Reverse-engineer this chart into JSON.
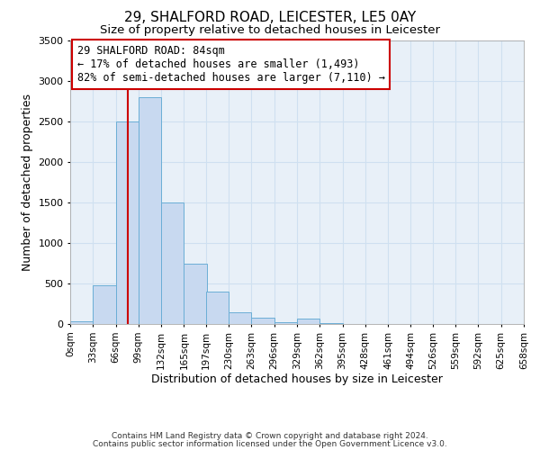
{
  "title": "29, SHALFORD ROAD, LEICESTER, LE5 0AY",
  "subtitle": "Size of property relative to detached houses in Leicester",
  "xlabel": "Distribution of detached houses by size in Leicester",
  "ylabel": "Number of detached properties",
  "bar_left_edges": [
    0,
    33,
    66,
    99,
    132,
    165,
    197,
    230,
    263,
    296,
    329,
    362,
    395,
    428,
    461,
    494,
    526,
    559,
    592,
    625
  ],
  "bar_heights": [
    30,
    480,
    2500,
    2800,
    1500,
    750,
    400,
    150,
    80,
    20,
    70,
    10,
    5,
    0,
    0,
    0,
    0,
    0,
    0,
    0
  ],
  "bin_width": 33,
  "bar_color": "#c8d9f0",
  "bar_edge_color": "#6baed6",
  "x_tick_labels": [
    "0sqm",
    "33sqm",
    "66sqm",
    "99sqm",
    "132sqm",
    "165sqm",
    "197sqm",
    "230sqm",
    "263sqm",
    "296sqm",
    "329sqm",
    "362sqm",
    "395sqm",
    "428sqm",
    "461sqm",
    "494sqm",
    "526sqm",
    "559sqm",
    "592sqm",
    "625sqm",
    "658sqm"
  ],
  "ylim": [
    0,
    3500
  ],
  "xlim": [
    0,
    658
  ],
  "marker_x": 84,
  "marker_color": "#cc0000",
  "annotation_title": "29 SHALFORD ROAD: 84sqm",
  "annotation_line1": "← 17% of detached houses are smaller (1,493)",
  "annotation_line2": "82% of semi-detached houses are larger (7,110) →",
  "annotation_box_color": "#cc0000",
  "footer1": "Contains HM Land Registry data © Crown copyright and database right 2024.",
  "footer2": "Contains public sector information licensed under the Open Government Licence v3.0.",
  "grid_color": "#cfe0f0",
  "background_color": "#e8f0f8",
  "title_fontsize": 11,
  "subtitle_fontsize": 9.5,
  "axis_label_fontsize": 9,
  "tick_fontsize": 7.5,
  "annotation_fontsize": 8.5,
  "footer_fontsize": 6.5
}
